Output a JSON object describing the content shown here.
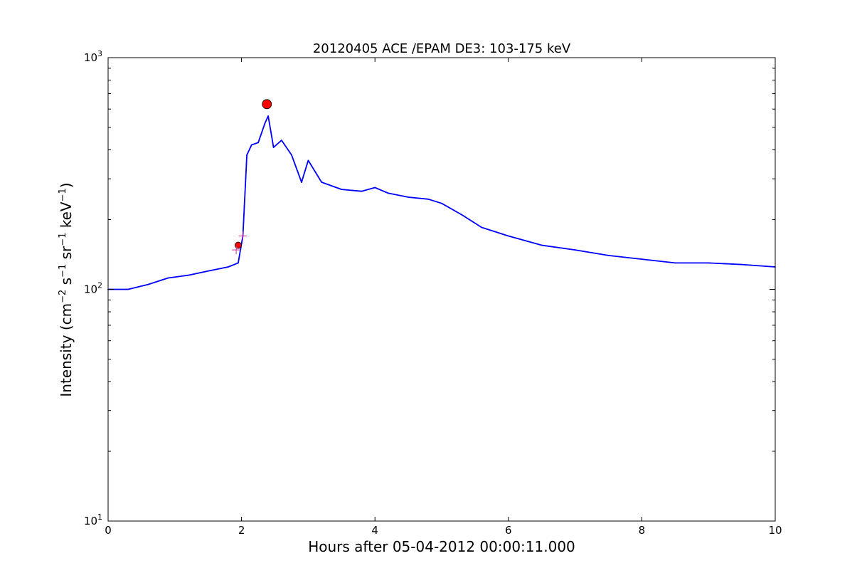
{
  "chart_data": {
    "type": "line",
    "title": "20120405 ACE /EPAM DE3: 103-175 keV",
    "xlabel": "Hours after 05-04-2012 00:00:11.000",
    "ylabel": {
      "prefix": "Intensity (cm",
      "sup1": "−2",
      "mid1": " s",
      "sup2": "−1",
      "mid2": " sr",
      "sup3": "−1",
      "mid3": " keV",
      "sup4": "−1",
      "suffix": ")"
    },
    "xlim": [
      0,
      10
    ],
    "ylim": [
      10,
      1000
    ],
    "yscale": "log",
    "grid": false,
    "x_ticks": [
      {
        "value": 0,
        "label": "0"
      },
      {
        "value": 2,
        "label": "2"
      },
      {
        "value": 4,
        "label": "4"
      },
      {
        "value": 6,
        "label": "6"
      },
      {
        "value": 8,
        "label": "8"
      },
      {
        "value": 10,
        "label": "10"
      }
    ],
    "y_ticks": [
      {
        "value": 10,
        "base": "10",
        "exp": "1"
      },
      {
        "value": 100,
        "base": "10",
        "exp": "2"
      },
      {
        "value": 1000,
        "base": "10",
        "exp": "3"
      }
    ],
    "series": [
      {
        "color": "#000000",
        "x": [
          0.0,
          0.3,
          0.6,
          0.9,
          1.2,
          1.5,
          1.8,
          1.95,
          2.02,
          2.08,
          2.15,
          2.25,
          2.35,
          2.4,
          2.48,
          2.6,
          2.75,
          2.9,
          3.0,
          3.2,
          3.5,
          3.8,
          4.0,
          4.2,
          4.5,
          4.8,
          5.0,
          5.3,
          5.6,
          6.0,
          6.5,
          7.0,
          7.5,
          8.0,
          8.5,
          9.0,
          9.5,
          10.0
        ],
        "y": [
          100,
          100,
          105,
          112,
          115,
          120,
          125,
          130,
          170,
          380,
          420,
          430,
          520,
          560,
          410,
          440,
          380,
          290,
          360,
          290,
          270,
          265,
          275,
          260,
          250,
          245,
          235,
          210,
          185,
          170,
          155,
          148,
          140,
          135,
          130,
          130,
          128,
          125
        ]
      },
      {
        "color": "#0000ff",
        "x": [
          0.0,
          0.3,
          0.6,
          0.9,
          1.2,
          1.5,
          1.8,
          1.95,
          2.02,
          2.08,
          2.15,
          2.25,
          2.35,
          2.4,
          2.48,
          2.6,
          2.75,
          2.9,
          3.0,
          3.2,
          3.5,
          3.8,
          4.0,
          4.2,
          4.5,
          4.8,
          5.0,
          5.3,
          5.6,
          6.0,
          6.5,
          7.0,
          7.5,
          8.0,
          8.5,
          9.0,
          9.5,
          10.0
        ],
        "y": [
          100,
          100,
          105,
          112,
          115,
          120,
          125,
          130,
          170,
          380,
          420,
          430,
          520,
          560,
          410,
          440,
          380,
          290,
          360,
          290,
          270,
          265,
          275,
          260,
          250,
          245,
          235,
          210,
          185,
          170,
          155,
          148,
          140,
          135,
          130,
          130,
          128,
          125
        ]
      }
    ],
    "markers": [
      {
        "x": 1.95,
        "y": 155,
        "shape": "circle",
        "color": "#ff0000",
        "size": "small"
      },
      {
        "x": 2.38,
        "y": 630,
        "shape": "circle",
        "color": "#ff0000",
        "size": "large"
      },
      {
        "x": 2.02,
        "y": 170,
        "shape": "plus",
        "color": "#cc3399"
      },
      {
        "x": 1.92,
        "y": 148,
        "shape": "plus",
        "color": "#cc3399"
      }
    ]
  }
}
